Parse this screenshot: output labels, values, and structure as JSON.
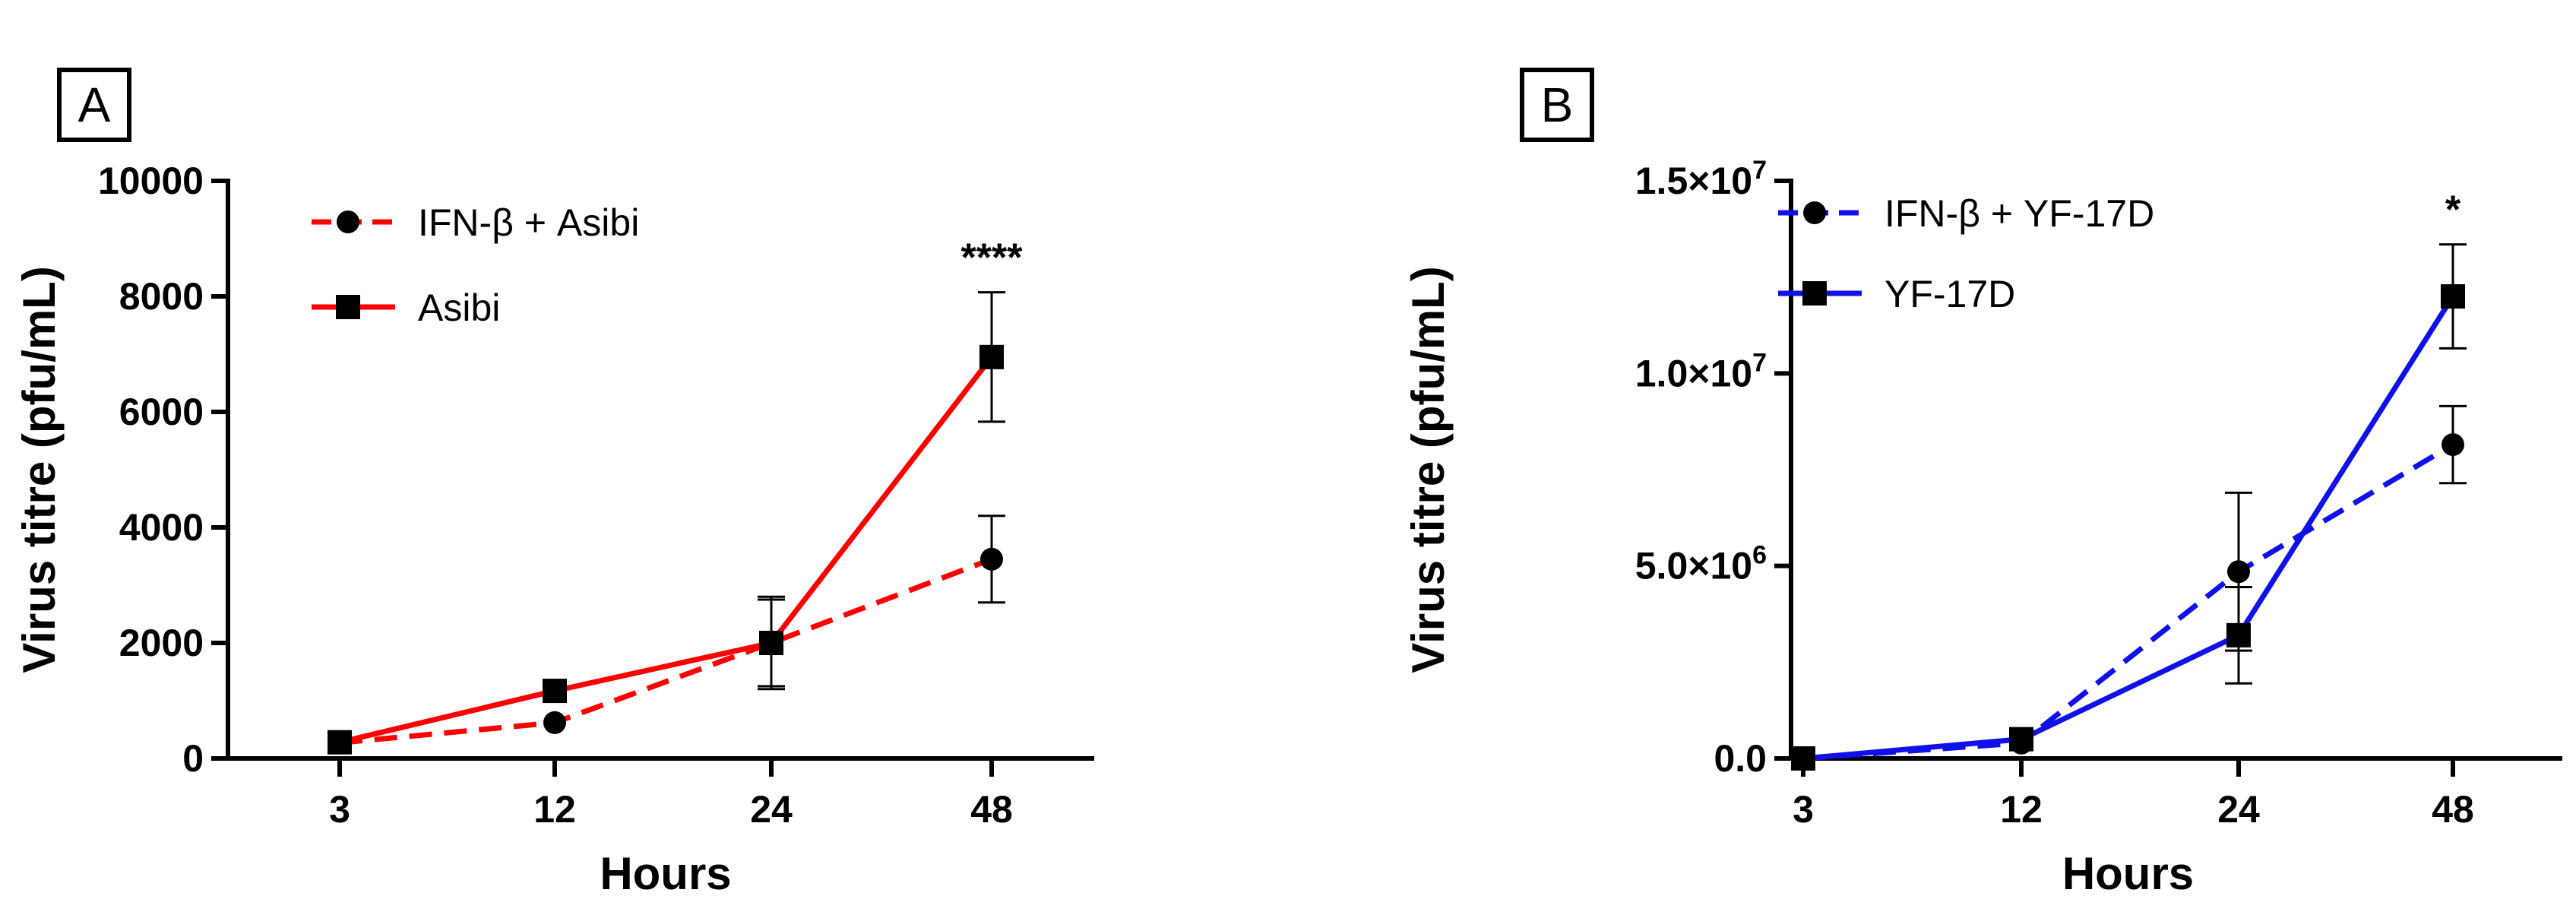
{
  "chart_data": [
    {
      "type": "line",
      "panel_label": "A",
      "xlabel": "Hours",
      "ylabel": "Virus titre (pfu/mL)",
      "categories": [
        "3",
        "12",
        "24",
        "48"
      ],
      "ylim": [
        0,
        10000
      ],
      "yticks": [
        0,
        2000,
        4000,
        6000,
        8000,
        10000
      ],
      "ytick_labels": [
        "0",
        "2000",
        "4000",
        "6000",
        "8000",
        "10000"
      ],
      "legend_position": "top-left",
      "grid": false,
      "color": "#ff0000",
      "series": [
        {
          "name": "IFN-β + Asibi",
          "marker": "circle",
          "line_style": "dashed",
          "values": [
            270,
            620,
            2000,
            3450
          ],
          "errors": [
            null,
            null,
            800,
            750
          ]
        },
        {
          "name": "Asibi",
          "marker": "square",
          "line_style": "solid",
          "values": [
            280,
            1170,
            2000,
            6950
          ],
          "errors": [
            null,
            null,
            750,
            1120
          ]
        }
      ],
      "annotations": [
        {
          "text": "****",
          "category": "48"
        }
      ]
    },
    {
      "type": "line",
      "panel_label": "B",
      "xlabel": "Hours",
      "ylabel": "Virus titre (pfu/mL)",
      "categories": [
        "3",
        "12",
        "24",
        "48"
      ],
      "ylim": [
        0,
        15000000
      ],
      "yticks": [
        0,
        5000000,
        10000000,
        15000000
      ],
      "ytick_labels": [
        {
          "base": "0.0",
          "exp": ""
        },
        {
          "base": "5.0×10",
          "exp": "6"
        },
        {
          "base": "1.0×10",
          "exp": "7"
        },
        {
          "base": "1.5×10",
          "exp": "7"
        }
      ],
      "legend_position": "top-left",
      "grid": false,
      "color": "#1010e8",
      "series": [
        {
          "name": "IFN-β + YF-17D",
          "marker": "circle",
          "line_style": "dashed",
          "values": [
            0,
            400000,
            4850000,
            8150000
          ],
          "errors": [
            null,
            null,
            2050000,
            1000000
          ]
        },
        {
          "name": "YF-17D",
          "marker": "square",
          "line_style": "solid",
          "values": [
            0,
            500000,
            3200000,
            12000000
          ],
          "errors": [
            null,
            null,
            1250000,
            1350000
          ]
        }
      ],
      "annotations": [
        {
          "text": "*",
          "category": "48"
        }
      ]
    }
  ]
}
